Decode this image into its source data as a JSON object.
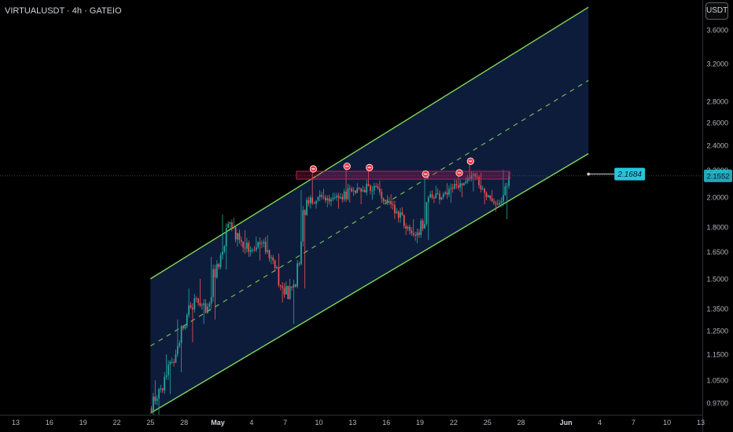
{
  "header": {
    "symbol_title": "VIRTUALUSDT · 4h · GATEIO",
    "currency_button": "USDT"
  },
  "chart_data": {
    "type": "candlestick",
    "symbol": "VIRTUALUSDT",
    "interval": "4h",
    "exchange": "GATEIO",
    "y_scale": "log",
    "ylim": [
      0.93,
      4.0
    ],
    "yticks": [
      3.6,
      3.2,
      2.8,
      2.6,
      2.4,
      2.2,
      2.0,
      1.8,
      1.65,
      1.5,
      1.35,
      1.25,
      1.15,
      1.05,
      0.97
    ],
    "ytick_labels": [
      "3.6000",
      "3.2000",
      "2.8000",
      "2.6000",
      "2.4000",
      "2.2000",
      "2.0000",
      "1.8000",
      "1.6500",
      "1.5000",
      "1.3500",
      "1.2500",
      "1.1500",
      "1.0500",
      "0.9700"
    ],
    "xticks": [
      {
        "date": "2025-04-13",
        "label": "13"
      },
      {
        "date": "2025-04-16",
        "label": "16"
      },
      {
        "date": "2025-04-19",
        "label": "19"
      },
      {
        "date": "2025-04-22",
        "label": "22"
      },
      {
        "date": "2025-04-25",
        "label": "25"
      },
      {
        "date": "2025-04-28",
        "label": "28"
      },
      {
        "date": "2025-05-01",
        "label": "May",
        "bold": true
      },
      {
        "date": "2025-05-04",
        "label": "4"
      },
      {
        "date": "2025-05-07",
        "label": "7"
      },
      {
        "date": "2025-05-10",
        "label": "10"
      },
      {
        "date": "2025-05-13",
        "label": "13"
      },
      {
        "date": "2025-05-16",
        "label": "16"
      },
      {
        "date": "2025-05-19",
        "label": "19"
      },
      {
        "date": "2025-05-22",
        "label": "22"
      },
      {
        "date": "2025-05-25",
        "label": "25"
      },
      {
        "date": "2025-05-28",
        "label": "28"
      },
      {
        "date": "2025-06-01",
        "label": "Jun",
        "bold": true
      },
      {
        "date": "2025-06-04",
        "label": "4"
      },
      {
        "date": "2025-06-07",
        "label": "7"
      },
      {
        "date": "2025-06-10",
        "label": "10"
      },
      {
        "date": "2025-06-13",
        "label": "13"
      }
    ],
    "current_price": {
      "value": 2.1552,
      "label": "2.1552"
    },
    "price_marker": {
      "value": 2.1684,
      "label": "2.1684",
      "date": "2025-06-03"
    },
    "channel": {
      "lower": {
        "start": {
          "date": "2025-04-25",
          "price": 0.935
        },
        "end": {
          "date": "2025-06-03",
          "price": 2.33
        }
      },
      "upper": {
        "start": {
          "date": "2025-04-25",
          "price": 1.5
        },
        "end": {
          "date": "2025-06-03",
          "price": 3.9
        }
      },
      "middle_dashed": true
    },
    "resistance_zone": {
      "start_date": "2025-05-08",
      "end_date": "2025-05-26",
      "low": 2.13,
      "high": 2.19
    },
    "touch_markers": [
      {
        "date": "2025-05-09",
        "price": 2.19
      },
      {
        "date": "2025-05-12",
        "price": 2.21
      },
      {
        "date": "2025-05-14",
        "price": 2.2
      },
      {
        "date": "2025-05-19",
        "price": 2.15
      },
      {
        "date": "2025-05-22",
        "price": 2.16
      },
      {
        "date": "2025-05-23",
        "price": 2.25
      }
    ],
    "colors": {
      "up": "#26a69a",
      "down": "#ef5350",
      "channel_line": "#7ed957",
      "channel_fill": "#0f1e3f",
      "resistance": "#c2185b",
      "marker": "#f23645",
      "price_label": "#26c6da",
      "axis_text": "#b2b5be",
      "background": "#000000"
    },
    "candles_ohlc": [
      [
        "2025-04-25",
        0.95,
        1.05,
        0.93,
        1.02
      ],
      [
        "2025-04-26",
        1.02,
        1.15,
        1.0,
        1.12
      ],
      [
        "2025-04-27",
        1.12,
        1.3,
        1.08,
        1.26
      ],
      [
        "2025-04-28",
        1.26,
        1.45,
        1.2,
        1.4
      ],
      [
        "2025-04-29",
        1.4,
        1.5,
        1.28,
        1.33
      ],
      [
        "2025-04-30",
        1.33,
        1.62,
        1.3,
        1.58
      ],
      [
        "2025-05-01",
        1.58,
        1.88,
        1.55,
        1.82
      ],
      [
        "2025-05-02",
        1.82,
        1.86,
        1.68,
        1.72
      ],
      [
        "2025-05-03",
        1.72,
        1.78,
        1.62,
        1.66
      ],
      [
        "2025-05-04",
        1.66,
        1.74,
        1.6,
        1.7
      ],
      [
        "2025-05-05",
        1.7,
        1.75,
        1.58,
        1.6
      ],
      [
        "2025-05-06",
        1.6,
        1.64,
        1.38,
        1.42
      ],
      [
        "2025-05-07",
        1.42,
        1.5,
        1.28,
        1.46
      ],
      [
        "2025-05-08",
        1.46,
        2.05,
        1.45,
        1.98
      ],
      [
        "2025-05-09",
        1.98,
        2.19,
        1.92,
        2.0
      ],
      [
        "2025-05-10",
        2.0,
        2.06,
        1.93,
        1.97
      ],
      [
        "2025-05-11",
        1.97,
        2.03,
        1.92,
        2.0
      ],
      [
        "2025-05-12",
        2.0,
        2.21,
        1.96,
        2.04
      ],
      [
        "2025-05-13",
        2.04,
        2.1,
        1.95,
        2.05
      ],
      [
        "2025-05-14",
        2.05,
        2.2,
        1.98,
        2.08
      ],
      [
        "2025-05-15",
        2.08,
        2.12,
        1.95,
        1.98
      ],
      [
        "2025-05-16",
        1.98,
        2.02,
        1.85,
        1.9
      ],
      [
        "2025-05-17",
        1.9,
        1.93,
        1.75,
        1.8
      ],
      [
        "2025-05-18",
        1.8,
        1.85,
        1.7,
        1.75
      ],
      [
        "2025-05-19",
        1.75,
        2.15,
        1.72,
        2.02
      ],
      [
        "2025-05-20",
        2.02,
        2.08,
        1.95,
        2.0
      ],
      [
        "2025-05-21",
        2.0,
        2.1,
        1.96,
        2.06
      ],
      [
        "2025-05-22",
        2.06,
        2.16,
        2.0,
        2.1
      ],
      [
        "2025-05-23",
        2.1,
        2.25,
        2.04,
        2.15
      ],
      [
        "2025-05-24",
        2.15,
        2.18,
        1.95,
        2.0
      ],
      [
        "2025-05-25",
        2.0,
        2.05,
        1.9,
        1.95
      ],
      [
        "2025-05-26",
        1.95,
        2.2,
        1.85,
        2.15
      ]
    ]
  }
}
